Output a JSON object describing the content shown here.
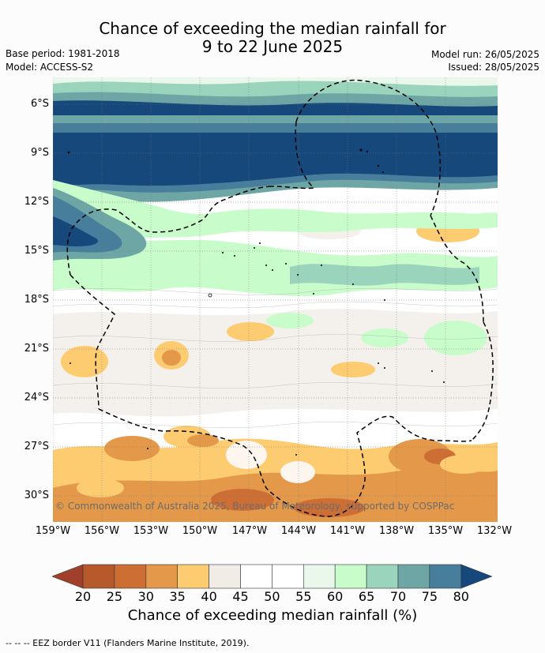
{
  "header": {
    "title_line1": "Chance of exceeding the median rainfall for",
    "title_line2": "9 to 22 June 2025",
    "base_period": "Base period: 1981-2018",
    "model": "Model: ACCESS-S2",
    "model_run": "Model run: 26/05/2025",
    "issued": "Issued: 28/05/2025"
  },
  "map": {
    "lat_labels": [
      "6°S",
      "9°S",
      "12°S",
      "15°S",
      "18°S",
      "21°S",
      "24°S",
      "27°S",
      "30°S"
    ],
    "lon_labels": [
      "159°W",
      "156°W",
      "153°W",
      "150°W",
      "147°W",
      "144°W",
      "141°W",
      "138°W",
      "135°W",
      "132°W"
    ],
    "copyright": "© Commonwealth of Australia 2025, Bureau of Meteorology, supported by COSPPac"
  },
  "colorbar": {
    "ticks": [
      "20",
      "25",
      "30",
      "35",
      "40",
      "45",
      "50",
      "55",
      "60",
      "65",
      "70",
      "75",
      "80"
    ],
    "colors": [
      "#a0402a",
      "#b65a2c",
      "#cd6e35",
      "#e3984a",
      "#fdcb70",
      "#f2ece7",
      "#ffffff",
      "#ffffff",
      "#eaf7eb",
      "#c8fccb",
      "#9bd4bc",
      "#6ea6a6",
      "#467e9c",
      "#16487c"
    ],
    "title": "Chance of exceeding median rainfall (%)"
  },
  "footer": {
    "eez_legend": "--  --  -- EEZ border V11 (Flanders Marine Institute, 2019)."
  }
}
